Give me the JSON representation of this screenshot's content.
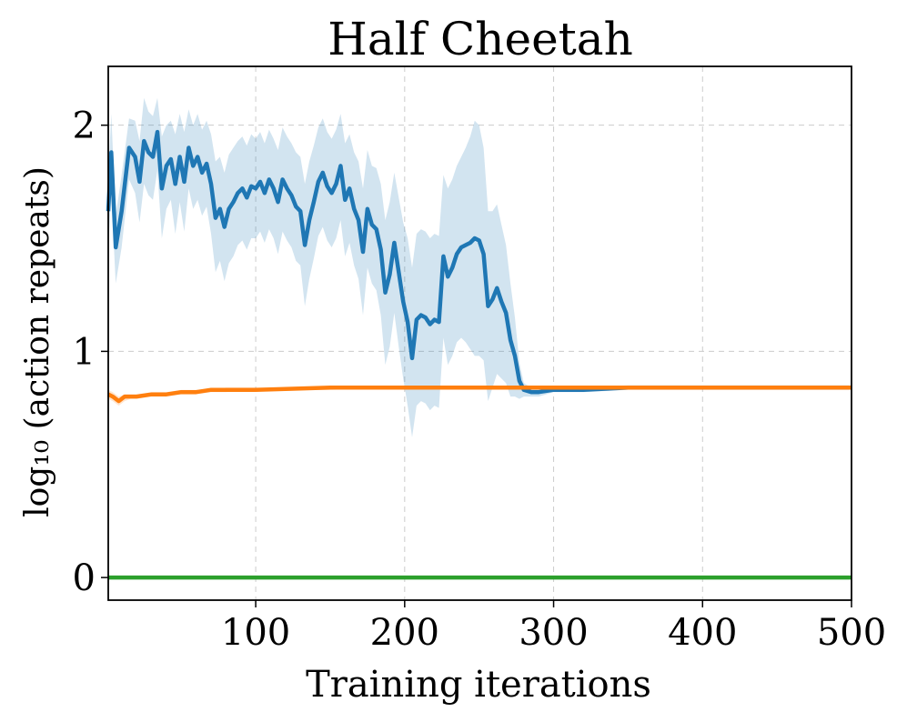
{
  "chart_data": {
    "type": "line",
    "title": "Half Cheetah",
    "xlabel": "Training iterations",
    "ylabel": "log₁₀ (action repeats)",
    "xlim": [
      1,
      500
    ],
    "ylim": [
      -0.1,
      2.26
    ],
    "xticks": [
      100,
      200,
      300,
      400,
      500
    ],
    "yticks": [
      0,
      1,
      2
    ],
    "grid": true,
    "series": [
      {
        "name": "blue",
        "color": "#1f77b4",
        "band_color": "#1f77b4",
        "band_opacity": 0.2,
        "x": [
          1,
          3,
          6,
          10,
          15,
          19,
          22,
          25,
          28,
          31,
          34,
          37,
          40,
          43,
          46,
          49,
          52,
          55,
          58,
          61,
          64,
          67,
          70,
          73,
          76,
          79,
          82,
          85,
          88,
          91,
          94,
          97,
          100,
          103,
          106,
          109,
          112,
          115,
          118,
          121,
          124,
          127,
          130,
          133,
          136,
          139,
          142,
          145,
          148,
          151,
          154,
          157,
          160,
          163,
          166,
          169,
          172,
          175,
          178,
          181,
          184,
          187,
          190,
          193,
          196,
          199,
          202,
          205,
          208,
          211,
          214,
          217,
          220,
          223,
          226,
          229,
          232,
          235,
          238,
          241,
          244,
          247,
          250,
          253,
          256,
          259,
          262,
          265,
          268,
          271,
          274,
          277,
          280,
          285,
          290,
          300,
          320,
          350,
          380,
          400,
          430,
          460,
          500
        ],
        "values": [
          1.62,
          1.88,
          1.46,
          1.62,
          1.9,
          1.86,
          1.75,
          1.93,
          1.88,
          1.86,
          1.97,
          1.72,
          1.82,
          1.85,
          1.74,
          1.86,
          1.75,
          1.9,
          1.82,
          1.86,
          1.79,
          1.83,
          1.74,
          1.59,
          1.63,
          1.55,
          1.63,
          1.66,
          1.7,
          1.72,
          1.68,
          1.73,
          1.72,
          1.75,
          1.7,
          1.76,
          1.72,
          1.66,
          1.76,
          1.72,
          1.69,
          1.64,
          1.62,
          1.47,
          1.58,
          1.66,
          1.75,
          1.79,
          1.73,
          1.7,
          1.74,
          1.82,
          1.67,
          1.72,
          1.63,
          1.58,
          1.44,
          1.63,
          1.56,
          1.54,
          1.45,
          1.26,
          1.34,
          1.48,
          1.35,
          1.22,
          1.13,
          0.97,
          1.14,
          1.16,
          1.15,
          1.12,
          1.14,
          1.13,
          1.42,
          1.33,
          1.37,
          1.43,
          1.46,
          1.47,
          1.48,
          1.5,
          1.49,
          1.43,
          1.2,
          1.23,
          1.28,
          1.22,
          1.17,
          1.05,
          0.98,
          0.87,
          0.83,
          0.82,
          0.82,
          0.83,
          0.83,
          0.84,
          0.84,
          0.84,
          0.84,
          0.84,
          0.84
        ],
        "upper": [
          1.78,
          2.05,
          1.6,
          1.78,
          2.03,
          2.02,
          1.93,
          2.12,
          2.06,
          2.04,
          2.12,
          1.95,
          2.0,
          2.02,
          1.96,
          2.05,
          1.97,
          2.07,
          2.0,
          2.05,
          1.98,
          2.02,
          1.96,
          1.84,
          1.86,
          1.79,
          1.87,
          1.9,
          1.93,
          1.95,
          1.91,
          1.96,
          1.94,
          1.97,
          1.92,
          1.98,
          1.94,
          1.89,
          1.99,
          1.95,
          1.92,
          1.88,
          1.86,
          1.74,
          1.84,
          1.91,
          1.99,
          2.03,
          1.97,
          1.94,
          1.98,
          2.05,
          1.92,
          1.96,
          1.88,
          1.84,
          1.72,
          1.89,
          1.82,
          1.81,
          1.74,
          1.58,
          1.66,
          1.79,
          1.68,
          1.57,
          1.5,
          1.37,
          1.52,
          1.54,
          1.53,
          1.5,
          1.52,
          1.51,
          1.78,
          1.72,
          1.76,
          1.82,
          1.86,
          1.9,
          1.95,
          2.02,
          2.0,
          1.9,
          1.62,
          1.62,
          1.65,
          1.56,
          1.47,
          1.3,
          1.15,
          0.95,
          0.86,
          0.84,
          0.84,
          0.84,
          0.84,
          0.85,
          0.85,
          0.85,
          0.85,
          0.85,
          0.85
        ],
        "lower": [
          1.45,
          1.7,
          1.3,
          1.46,
          1.76,
          1.7,
          1.57,
          1.74,
          1.69,
          1.67,
          1.8,
          1.5,
          1.63,
          1.67,
          1.52,
          1.66,
          1.53,
          1.72,
          1.63,
          1.67,
          1.6,
          1.64,
          1.52,
          1.35,
          1.4,
          1.31,
          1.39,
          1.42,
          1.47,
          1.49,
          1.45,
          1.5,
          1.5,
          1.53,
          1.48,
          1.54,
          1.5,
          1.43,
          1.53,
          1.49,
          1.46,
          1.4,
          1.38,
          1.2,
          1.32,
          1.41,
          1.51,
          1.55,
          1.49,
          1.46,
          1.5,
          1.58,
          1.42,
          1.48,
          1.38,
          1.32,
          1.16,
          1.37,
          1.3,
          1.27,
          1.16,
          0.94,
          1.02,
          1.17,
          1.02,
          0.88,
          0.76,
          0.62,
          0.76,
          0.78,
          0.77,
          0.74,
          0.76,
          0.75,
          1.06,
          0.94,
          0.98,
          1.04,
          1.06,
          1.04,
          1.01,
          0.98,
          0.98,
          0.96,
          0.78,
          0.84,
          0.9,
          0.88,
          0.86,
          0.8,
          0.8,
          0.79,
          0.8,
          0.8,
          0.8,
          0.82,
          0.82,
          0.83,
          0.83,
          0.83,
          0.83,
          0.83,
          0.83
        ]
      },
      {
        "name": "orange",
        "color": "#ff7f0e",
        "band_color": "#ff7f0e",
        "band_opacity": 0.2,
        "x": [
          1,
          4,
          8,
          12,
          16,
          20,
          30,
          40,
          50,
          60,
          70,
          80,
          100,
          150,
          200,
          250,
          300,
          350,
          400,
          450,
          500
        ],
        "values": [
          0.81,
          0.8,
          0.78,
          0.8,
          0.8,
          0.8,
          0.81,
          0.81,
          0.82,
          0.82,
          0.83,
          0.83,
          0.83,
          0.84,
          0.84,
          0.84,
          0.84,
          0.84,
          0.84,
          0.84,
          0.84
        ],
        "upper": [
          0.83,
          0.82,
          0.8,
          0.81,
          0.81,
          0.81,
          0.82,
          0.82,
          0.83,
          0.83,
          0.83,
          0.84,
          0.84,
          0.84,
          0.84,
          0.84,
          0.84,
          0.84,
          0.84,
          0.84,
          0.84
        ],
        "lower": [
          0.79,
          0.78,
          0.76,
          0.78,
          0.79,
          0.79,
          0.8,
          0.8,
          0.81,
          0.81,
          0.82,
          0.82,
          0.83,
          0.83,
          0.84,
          0.84,
          0.84,
          0.84,
          0.84,
          0.84,
          0.84
        ]
      },
      {
        "name": "green",
        "color": "#2ca02c",
        "x": [
          1,
          500
        ],
        "values": [
          0,
          0
        ]
      }
    ]
  }
}
